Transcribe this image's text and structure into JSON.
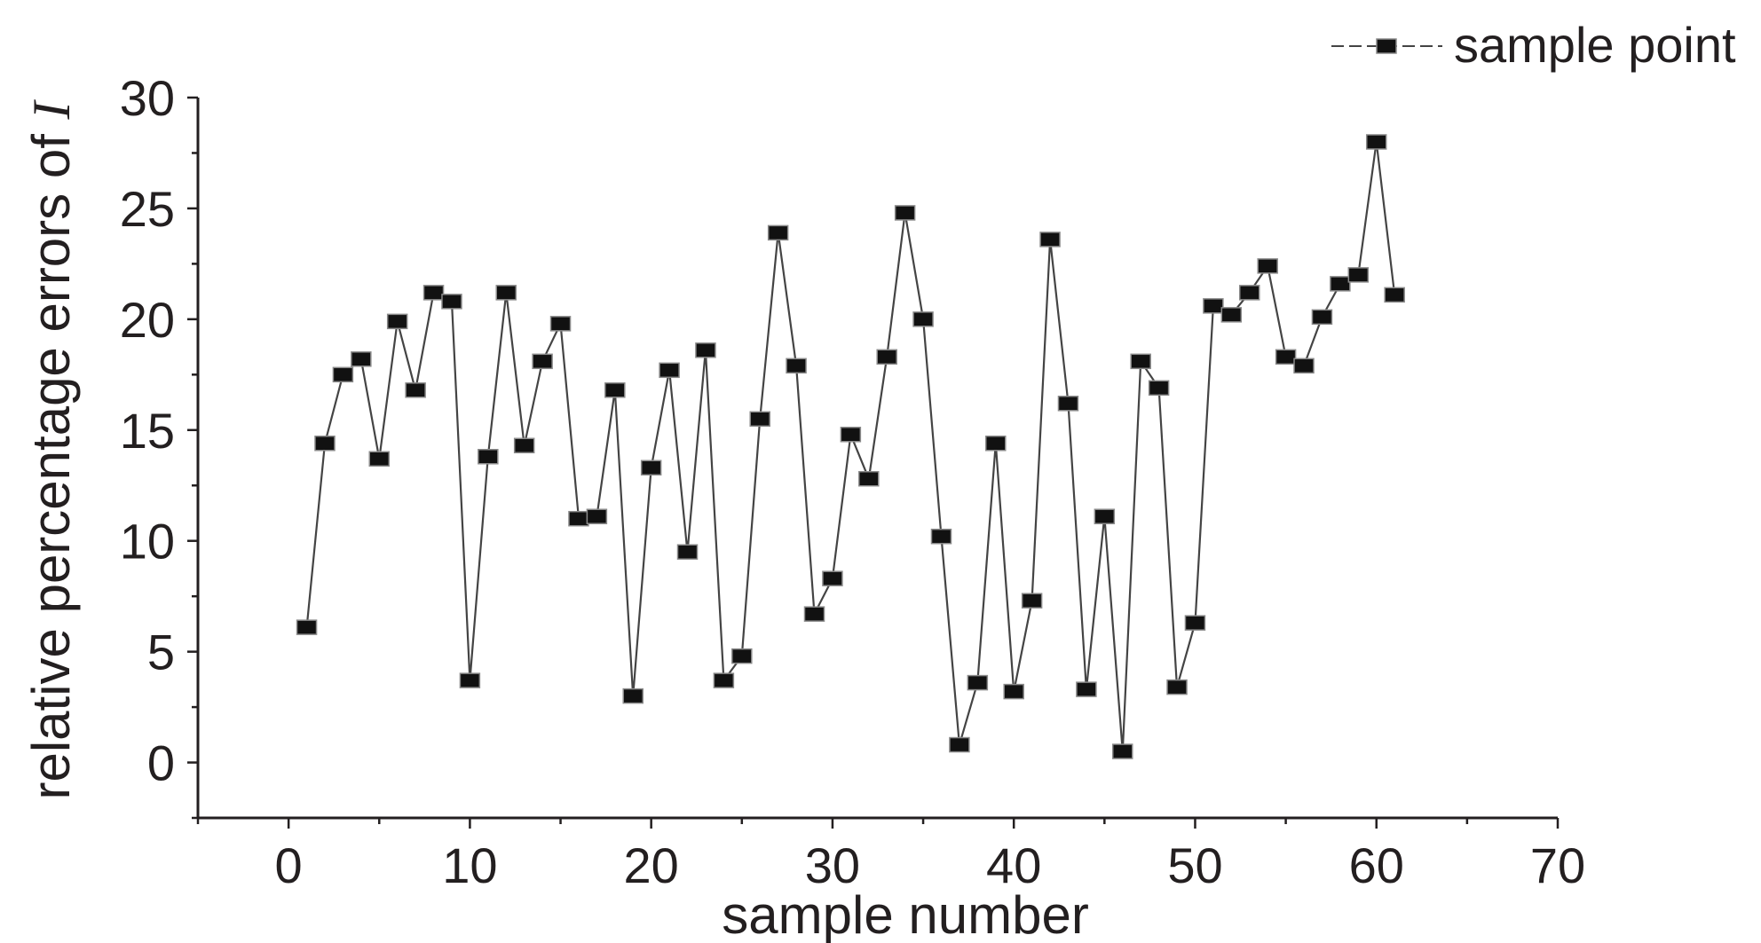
{
  "chart_data": {
    "type": "line",
    "title": "",
    "xlabel": "sample number",
    "ylabel": "relative percentage errors of ",
    "ylabel_var": "I",
    "xlim": [
      -5,
      70
    ],
    "ylim": [
      -2.5,
      30
    ],
    "xticks": [
      0,
      10,
      20,
      30,
      40,
      50,
      60,
      70
    ],
    "yticks": [
      0,
      5,
      10,
      15,
      20,
      25,
      30
    ],
    "grid": false,
    "legend": "top-right",
    "series": [
      {
        "name": "sample point",
        "marker": "square",
        "color": "#1a1a1a",
        "x": [
          1,
          2,
          3,
          4,
          5,
          6,
          7,
          8,
          9,
          10,
          11,
          12,
          13,
          14,
          15,
          16,
          17,
          18,
          19,
          20,
          21,
          22,
          23,
          24,
          25,
          26,
          27,
          28,
          29,
          30,
          31,
          32,
          33,
          34,
          35,
          36,
          37,
          38,
          39,
          40,
          41,
          42,
          43,
          44,
          45,
          46,
          47,
          48,
          49,
          50,
          51,
          52,
          53,
          54,
          55,
          56,
          57,
          58,
          59,
          60,
          61
        ],
        "y": [
          6.1,
          14.4,
          17.5,
          18.2,
          13.7,
          19.9,
          16.8,
          21.2,
          20.8,
          3.7,
          13.8,
          21.2,
          14.3,
          18.1,
          19.8,
          11.0,
          11.1,
          16.8,
          3.0,
          13.3,
          17.7,
          9.5,
          18.6,
          3.7,
          4.8,
          15.5,
          23.9,
          17.9,
          6.7,
          8.3,
          14.8,
          12.8,
          18.3,
          24.8,
          20.0,
          10.2,
          0.8,
          3.6,
          14.4,
          3.2,
          7.3,
          23.6,
          16.2,
          3.3,
          11.1,
          0.5,
          18.1,
          16.9,
          3.4,
          6.3,
          20.6,
          20.2,
          21.2,
          22.4,
          18.3,
          17.9,
          20.1,
          21.6,
          22.0,
          28.0,
          21.1
        ]
      }
    ]
  }
}
